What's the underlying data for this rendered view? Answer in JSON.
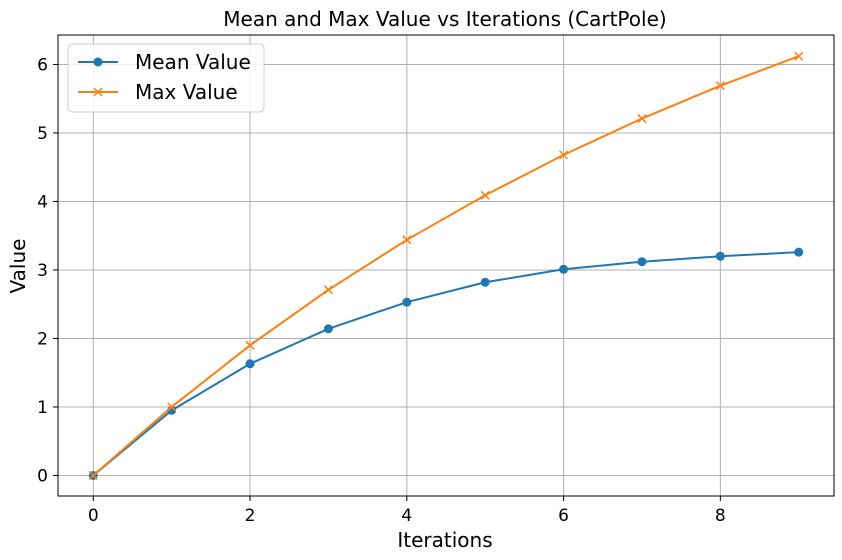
{
  "chart_data": {
    "type": "line",
    "title": "Mean and Max Value vs Iterations (CartPole)",
    "xlabel": "Iterations",
    "ylabel": "Value",
    "x": [
      0,
      1,
      2,
      3,
      4,
      5,
      6,
      7,
      8,
      9
    ],
    "xlim": [
      -0.45,
      9.45
    ],
    "ylim": [
      -0.3,
      6.43
    ],
    "xticks": [
      0,
      2,
      4,
      6,
      8
    ],
    "yticks": [
      0,
      1,
      2,
      3,
      4,
      5,
      6
    ],
    "grid": true,
    "legend_position": "top-left",
    "series": [
      {
        "name": "Mean Value",
        "color": "#1f77b4",
        "marker": "circle",
        "values": [
          0.0,
          0.95,
          1.63,
          2.14,
          2.53,
          2.82,
          3.01,
          3.12,
          3.2,
          3.26
        ]
      },
      {
        "name": "Max Value",
        "color": "#ff7f0e",
        "marker": "x",
        "values": [
          0.0,
          1.0,
          1.9,
          2.71,
          3.44,
          4.09,
          4.68,
          5.21,
          5.69,
          6.12
        ]
      }
    ]
  }
}
